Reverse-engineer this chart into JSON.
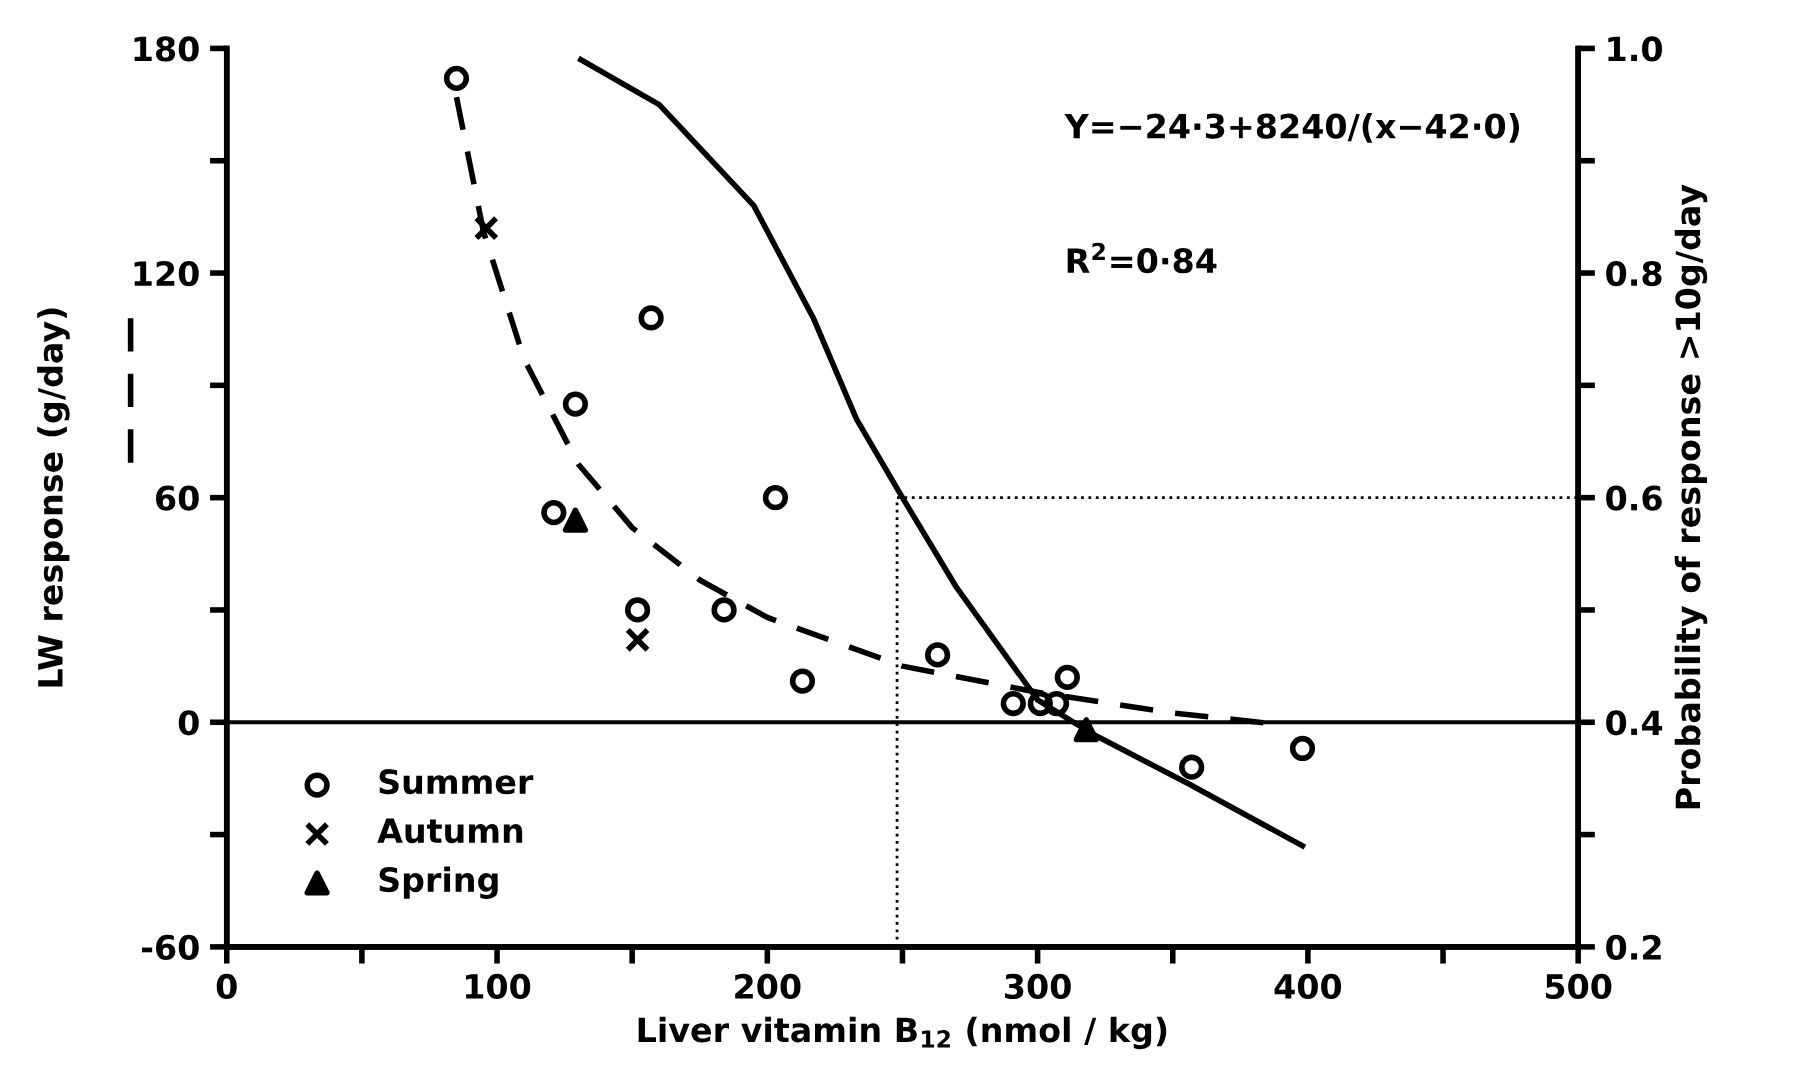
{
  "chart_data": {
    "type": "scatter",
    "xlabel": "Liver vitamin B$_{12}$ (nmol / kg)",
    "ylabel": "LW response (g/day)",
    "y2label": "Probability of response >10g/day",
    "xlim": [
      0,
      500
    ],
    "xticks": [
      0,
      {
        "value": 50,
        "label": null
      },
      100,
      {
        "value": 150,
        "label": null
      },
      200,
      {
        "value": 250,
        "label": null
      },
      300,
      {
        "value": 350,
        "label": null
      },
      400,
      {
        "value": 450,
        "label": null
      },
      500
    ],
    "ylim": [
      -60,
      180
    ],
    "yticks": [
      -60,
      {
        "value": -30,
        "label": null
      },
      0,
      {
        "value": 30,
        "label": null
      },
      60,
      {
        "value": 90,
        "label": null
      },
      120,
      {
        "value": 150,
        "label": null
      },
      180
    ],
    "y2lim": [
      0.2,
      1.0
    ],
    "y2ticks": [
      0.2,
      {
        "value": 0.3,
        "label": null
      },
      0.4,
      {
        "value": 0.5,
        "label": null
      },
      0.6,
      {
        "value": 0.7,
        "label": null
      },
      0.8,
      {
        "value": 0.9,
        "label": null
      },
      {
        "value": 1.0,
        "label": "1.0"
      }
    ],
    "series": [
      {
        "name": "Summer",
        "marker": "circle",
        "color": "#000000",
        "x": [
          85,
          157,
          129,
          121,
          203,
          152,
          184,
          213,
          263,
          291,
          301,
          307,
          311,
          357,
          398
        ],
        "values": [
          172,
          108,
          85,
          56,
          60,
          30,
          30,
          11,
          18,
          5,
          5,
          5,
          12,
          -12,
          -7
        ]
      },
      {
        "name": "Autumn",
        "marker": "cross",
        "color": "#000000",
        "x": [
          96,
          152
        ],
        "values": [
          132,
          22
        ]
      },
      {
        "name": "Spring",
        "marker": "triangle",
        "color": "#000000",
        "x": [
          129,
          318
        ],
        "values": [
          54,
          -2
        ]
      },
      {
        "type": "line",
        "line_style": "dashed",
        "color": "#000000",
        "x": [
          85,
          95,
          110,
          130,
          150,
          175,
          200,
          250,
          300,
          350,
          390
        ],
        "values": [
          167,
          131,
          97,
          69,
          52,
          38,
          28,
          15,
          8,
          2.5,
          -0.6
        ]
      },
      {
        "type": "line",
        "axis": "y2",
        "line_style": "solid",
        "color": "#000000",
        "x": [
          131,
          160,
          195,
          217,
          233,
          250,
          270,
          300,
          320,
          356,
          398
        ],
        "values": [
          0.99,
          0.95,
          0.86,
          0.76,
          0.67,
          0.6,
          0.52,
          0.42,
          0.39,
          0.345,
          0.29
        ]
      }
    ],
    "ref_lines": [
      {
        "axis": "y",
        "value": 0,
        "line_style": "solid"
      },
      {
        "axis": "x",
        "value": 248,
        "line_style": "dotted"
      },
      {
        "axis": "y2",
        "value": 0.6,
        "line_style": "dotted"
      }
    ],
    "annotations": [
      "Y=−24·3+8240/(x−42·0)",
      "R$^{2}$=0·84"
    ],
    "legend": "bottom left",
    "grid": false
  }
}
